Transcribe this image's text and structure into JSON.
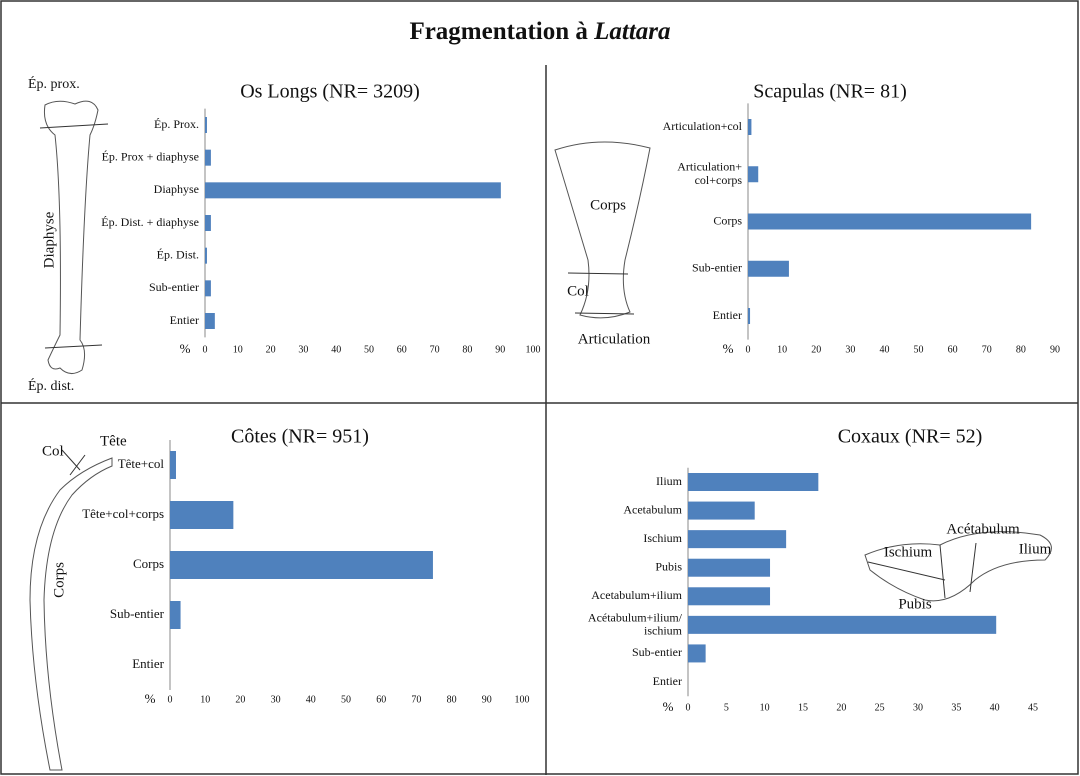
{
  "title": {
    "text": "Fragmentation à",
    "emphasis": "Lattara"
  },
  "chart_data": [
    {
      "type": "barh",
      "title": "Os Longs (NR= 3209)",
      "xlabel": "%",
      "color": "#4f81bd",
      "categories": [
        "Ép. Prox.",
        "Ép. Prox + diaphyse",
        "Diaphyse",
        "Ép. Dist. + diaphyse",
        "Ép. Dist.",
        "Sub-entier",
        "Entier"
      ],
      "values": [
        0.6,
        1.8,
        90.2,
        1.8,
        0.6,
        1.8,
        3
      ],
      "xlim": [
        0,
        100
      ],
      "xticks": [
        0,
        10,
        20,
        30,
        40,
        50,
        60,
        70,
        80,
        90,
        100
      ],
      "annotations": [
        "Ép. prox.",
        "Diaphyse",
        "Ép. dist."
      ]
    },
    {
      "type": "barh",
      "title": "Scapulas (NR= 81)",
      "xlabel": "%",
      "color": "#4f81bd",
      "categories": [
        "Articulation+col",
        "Articulation+\ncol+corps",
        "Corps",
        "Sub-entier",
        "Entier"
      ],
      "values": [
        1,
        3,
        83,
        12,
        0.6
      ],
      "xlim": [
        0,
        90
      ],
      "xticks": [
        0,
        10,
        20,
        30,
        40,
        50,
        60,
        70,
        80,
        90
      ],
      "annotations": [
        "Corps",
        "Col",
        "Articulation"
      ]
    },
    {
      "type": "barh",
      "title": "Côtes (NR= 951)",
      "xlabel": "%",
      "color": "#4f81bd",
      "categories": [
        "Tête+col",
        "Tête+col+corps",
        "Corps",
        "Sub-entier",
        "Entier"
      ],
      "values": [
        1.7,
        18,
        74.7,
        3,
        0
      ],
      "xlim": [
        0,
        100
      ],
      "xticks": [
        0,
        10,
        20,
        30,
        40,
        50,
        60,
        70,
        80,
        90,
        100
      ],
      "annotations": [
        "Col",
        "Tête",
        "Corps"
      ]
    },
    {
      "type": "barh",
      "title": "Coxaux (NR= 52)",
      "xlabel": "%",
      "color": "#4f81bd",
      "categories": [
        "Ilium",
        "Acetabulum",
        "Ischium",
        "Pubis",
        "Acetabulum+ilium",
        "Acétabulum+ilium/\nischium",
        "Sub-entier",
        "Entier"
      ],
      "values": [
        17,
        8.7,
        12.8,
        10.7,
        10.7,
        40.2,
        2.3,
        0
      ],
      "xlim": [
        0,
        45
      ],
      "xticks": [
        0,
        5,
        10,
        15,
        20,
        25,
        30,
        35,
        40,
        45
      ],
      "annotations": [
        "Acétabulum",
        "Ischium",
        "Ilium",
        "Pubis"
      ]
    }
  ]
}
